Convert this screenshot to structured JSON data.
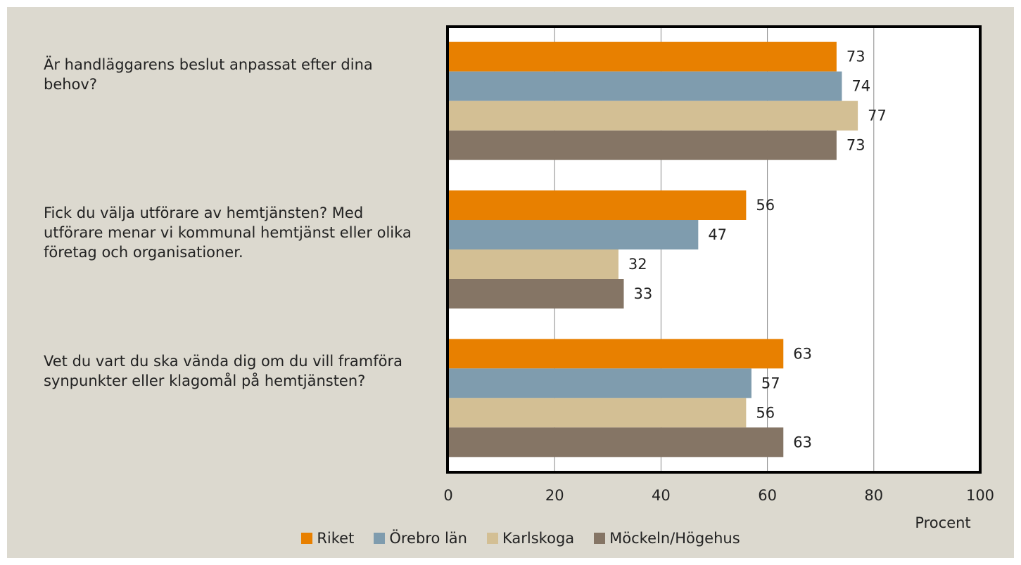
{
  "chart_data": {
    "type": "hbar",
    "categories": [
      "Är handläggarens beslut anpassat efter dina behov?",
      "Fick du välja utförare av hemtjänsten? Med utförare menar vi kommunal hemtjänst eller olika företag och organisationer.",
      "Vet du vart du ska vända dig om du vill framföra synpunkter eller klagomål på hemtjänsten?"
    ],
    "series": [
      {
        "name": "Riket",
        "color": "#e88000",
        "values": [
          73,
          56,
          63
        ]
      },
      {
        "name": "Örebro län",
        "color": "#7f9cae",
        "values": [
          74,
          47,
          57
        ]
      },
      {
        "name": "Karlskoga",
        "color": "#d3bf94",
        "values": [
          77,
          32,
          56
        ]
      },
      {
        "name": "Möckeln/Högehus",
        "color": "#857565",
        "values": [
          73,
          33,
          63
        ]
      }
    ],
    "x_label": "Procent",
    "xlim": [
      0,
      100
    ],
    "xticks": [
      0,
      20,
      40,
      60,
      80,
      100
    ],
    "grid": true,
    "legend": "bottom"
  }
}
